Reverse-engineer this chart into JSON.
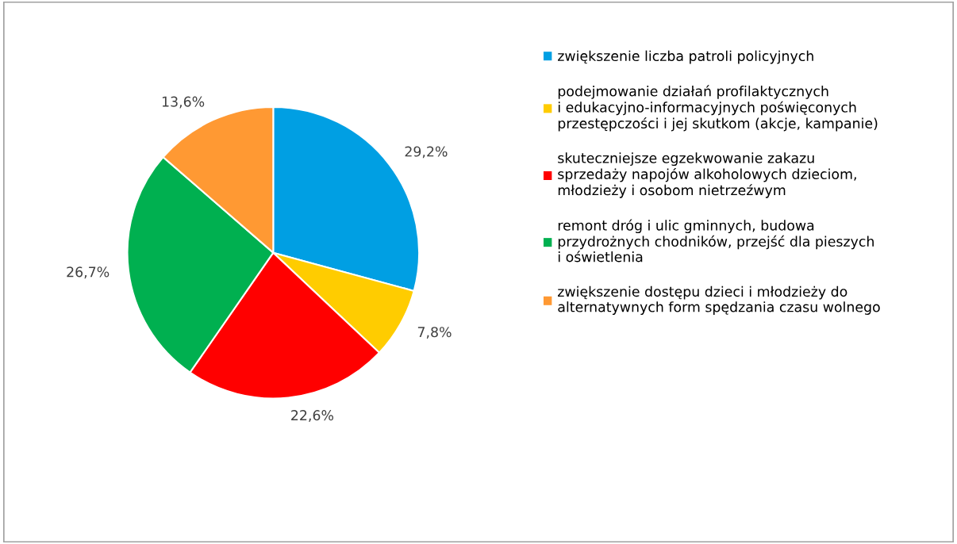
{
  "chart_data": {
    "type": "pie",
    "categories": [
      "zwiększenie liczba patroli policyjnych",
      "podejmowanie działań profilaktycznych\ni edukacyjno-informacyjnych poświęconych\nprzestępczości i jej skutkom (akcje, kampanie)",
      "skuteczniejsze egzekwowanie zakazu\nsprzedaży napojów alkoholowych dzieciom,\nmłodzieży i osobom nietrzeźwym",
      "remont dróg i ulic gminnych, budowa\nprzydrożnych chodników, przejść dla pieszych\ni oświetlenia",
      "zwiększenie dostępu dzieci i młodzieży do\nalternatywnych form spędzania czasu wolnego"
    ],
    "values": [
      29.2,
      7.8,
      22.6,
      26.7,
      13.6
    ],
    "value_labels": [
      "29,2%",
      "7,8%",
      "22,6%",
      "26,7%",
      "13,6%"
    ],
    "colors": [
      "#009fe3",
      "#ffcc00",
      "#ff0000",
      "#00b050",
      "#ff9933"
    ],
    "legend": "right"
  }
}
